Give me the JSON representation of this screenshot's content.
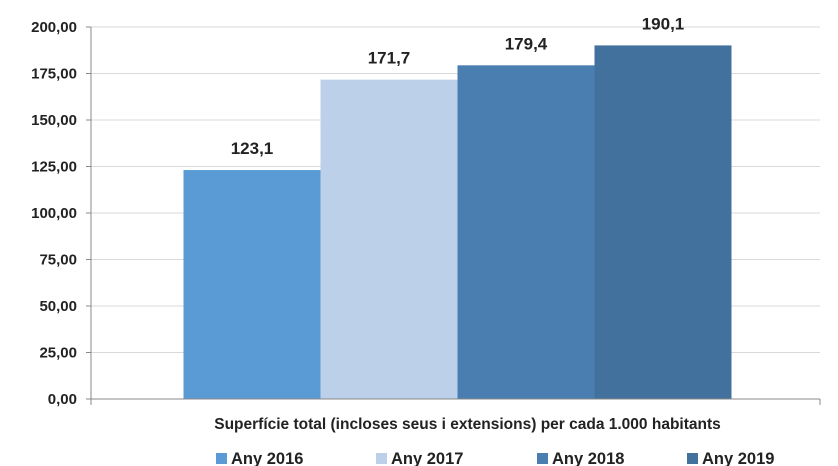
{
  "chart_data": {
    "type": "bar",
    "categories": [
      "Superfície total (incloses seus i extensions) per cada 1.000 habitants"
    ],
    "xlabel": "Superfície total (incloses seus i extensions) per cada 1.000 habitants",
    "ylabel": "",
    "ylim": [
      0,
      200
    ],
    "ytick_step": 25,
    "ytick_labels": [
      "0,00",
      "25,00",
      "50,00",
      "75,00",
      "100,00",
      "125,00",
      "150,00",
      "175,00",
      "200,00"
    ],
    "grid": true,
    "legend_position": "bottom",
    "series": [
      {
        "name": "Any 2016",
        "values": [
          123.1
        ],
        "label": "123,1",
        "color": "#5b9bd5"
      },
      {
        "name": "Any 2017",
        "values": [
          171.7
        ],
        "label": "171,7",
        "color": "#bdd0e9"
      },
      {
        "name": "Any 2018",
        "values": [
          179.4
        ],
        "label": "179,4",
        "color": "#4a7eb0"
      },
      {
        "name": "Any 2019",
        "values": [
          190.1
        ],
        "label": "190,1",
        "color": "#41719c"
      }
    ]
  }
}
